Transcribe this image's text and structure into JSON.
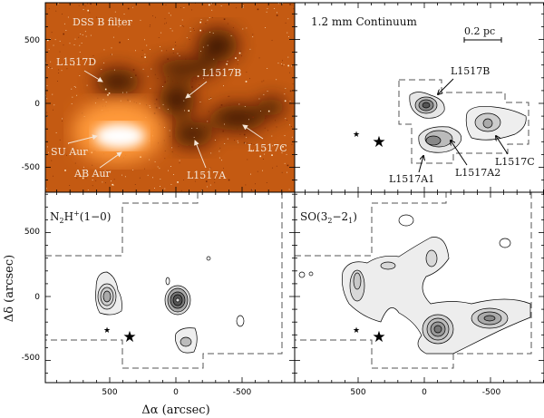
{
  "panels": {
    "dss": {
      "title": "DSS B filter",
      "labels": {
        "l1517d": "L1517D",
        "l1517b": "L1517B",
        "l1517c": "L1517C",
        "l1517a": "L1517A",
        "su_aur": "SU Aur",
        "ab_aur": "AB Aur"
      }
    },
    "continuum": {
      "title": "1.2 mm Continuum",
      "scale_bar": "0.2 pc",
      "labels": {
        "l1517b": "L1517B",
        "l1517a1": "L1517A1",
        "l1517a2": "L1517A2",
        "l1517c": "L1517C"
      }
    },
    "n2h": {
      "title_main": "N",
      "title_sub1": "2",
      "title_mid": "H",
      "title_sup": "+",
      "title_end": "(1−0)"
    },
    "so": {
      "title_main": "SO(3",
      "title_sub1": "2",
      "title_mid": "−2",
      "title_sub2": "1",
      "title_end": ")"
    }
  },
  "axes": {
    "xlabel": "Δα (arcsec)",
    "ylabel": "Δδ (arcsec)",
    "x_ticks": [
      "500",
      "0",
      "-500"
    ],
    "y_ticks": [
      "500",
      "0",
      "-500"
    ]
  },
  "colors": {
    "dss_background": "#c45a12",
    "contour_fill": "#e6e6e6",
    "contour_dark": "#9a9a9a"
  }
}
